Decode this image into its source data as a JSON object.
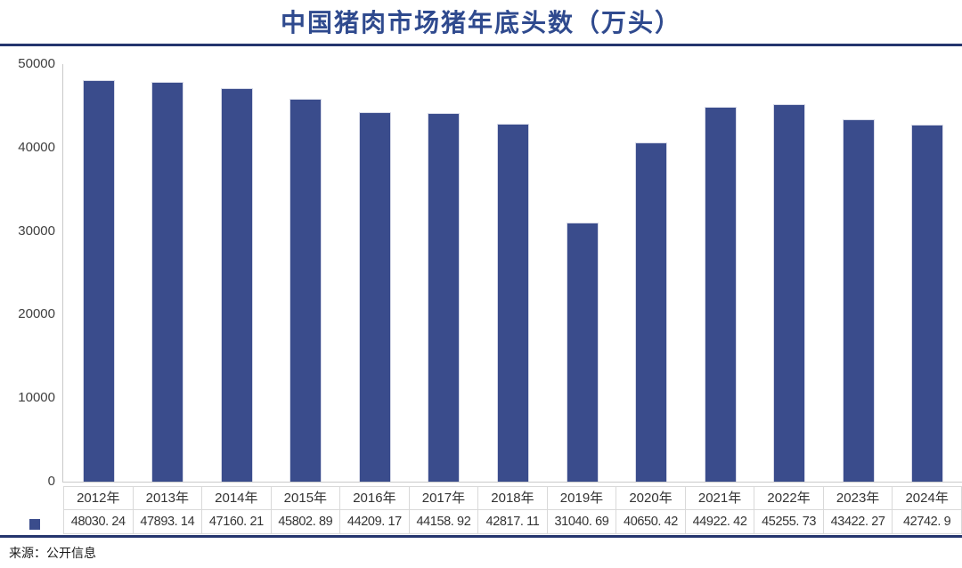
{
  "title": "中国猪肉市场猪年底头数（万头）",
  "source_note": "来源：公开信息",
  "colors": {
    "bar": "#3A4C8C",
    "title": "#2F4A8E",
    "rule": "#24356E",
    "axis": "#C9C9C9",
    "table_border": "#D9D9D9",
    "text": "#333333"
  },
  "chart_data": {
    "type": "bar",
    "title": "中国猪肉市场猪年底头数（万头）",
    "xlabel": "",
    "ylabel": "",
    "categories": [
      "2012年",
      "2013年",
      "2014年",
      "2015年",
      "2016年",
      "2017年",
      "2018年",
      "2019年",
      "2020年",
      "2021年",
      "2022年",
      "2023年",
      "2024年"
    ],
    "values": [
      48030.24,
      47893.14,
      47160.21,
      45802.89,
      44209.17,
      44158.92,
      42817.11,
      31040.69,
      40650.42,
      44922.42,
      45255.73,
      43422.27,
      42742.9
    ],
    "value_labels": [
      "48030. 24",
      "47893. 14",
      "47160. 21",
      "45802. 89",
      "44209. 17",
      "44158. 92",
      "42817. 11",
      "31040. 69",
      "40650. 42",
      "44922. 42",
      "45255. 73",
      "43422. 27",
      "42742. 9"
    ],
    "ylim": [
      0,
      50000
    ],
    "yticks": [
      0,
      10000,
      20000,
      30000,
      40000,
      50000
    ],
    "ytick_labels": [
      "0",
      "10000",
      "20000",
      "30000",
      "40000",
      "50000"
    ],
    "grid": false,
    "legend_position": "left-of-data-table-value-row",
    "bar_color": "#3A4C8C"
  }
}
